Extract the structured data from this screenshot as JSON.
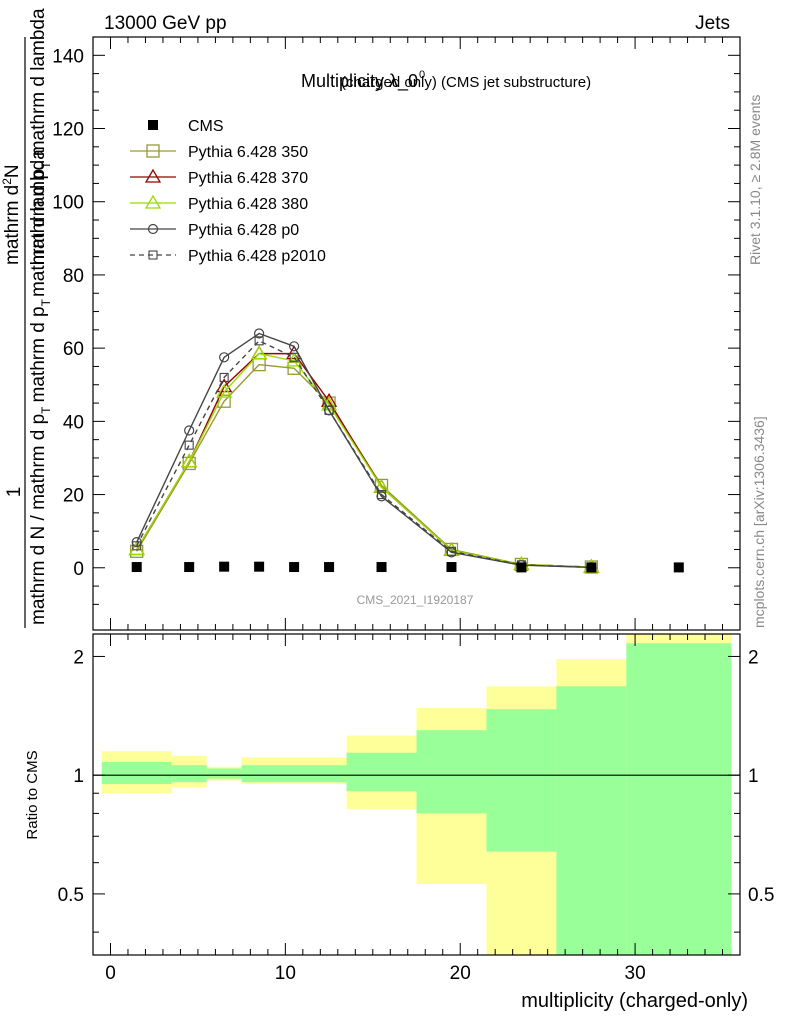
{
  "header": {
    "energy_label": "13000 GeV pp",
    "category_label": "Jets",
    "title_main": "Multiplicity λ_0",
    "title_sup": "0",
    "title_suffix": "(charged only) (CMS jet substructure)",
    "watermark": "CMS_2021_I1920187",
    "side_label_top": "Rivet 3.1.10, ≥ 2.8M events",
    "side_label_bottom": "mcplots.cern.ch [arXiv:1306.3436]"
  },
  "chart_data": [
    {
      "type": "line",
      "panel": "main",
      "title": "Multiplicity λ_0^0 (charged only) (CMS jet substructure)",
      "ylabel_numerator": "1    d²N",
      "ylabel_numerator_parts": [
        "1",
        "mathrm d",
        "N"
      ],
      "ylabel_denominator": "mathrm d N / mathrm d p_T   mathrm d p_T mathrm d lambda",
      "ylabel_parts": {
        "top_numer": "mathrm d",
        "top_N": "N",
        "top_denom": "mathrm d p",
        "top_denom_sub": "T",
        "top_denom_rest": " mathrm d lambda",
        "one": "1",
        "bottom": "mathrm d N / mathrm d p",
        "bottom_sub": "T",
        "bottom_rest": "mathrm d p",
        "bottom_sub2": "T",
        "bottom_rest2": "mathrm d lambda"
      },
      "xlim": [
        -1,
        36
      ],
      "ylim": [
        -17,
        145
      ],
      "yticks": [
        0,
        20,
        40,
        60,
        80,
        100,
        120,
        140
      ],
      "legend_position": "top-left",
      "series": [
        {
          "name": "CMS",
          "color": "#000000",
          "marker": "square-filled",
          "line": "none",
          "x": [
            1.5,
            4.5,
            6.5,
            8.5,
            10.5,
            12.5,
            15.5,
            19.5,
            23.5,
            27.5,
            32.5
          ],
          "y": [
            0.2,
            0.2,
            0.3,
            0.3,
            0.2,
            0.2,
            0.2,
            0.2,
            0.1,
            0.1,
            0.1
          ]
        },
        {
          "name": "Pythia 6.428 350",
          "color": "#999933",
          "marker": "square-open",
          "line": "solid",
          "x": [
            1.5,
            4.5,
            6.5,
            8.5,
            10.5,
            12.5,
            15.5,
            19.5,
            23.5,
            27.5
          ],
          "y": [
            4.5,
            28.5,
            45.5,
            55.5,
            54.5,
            45.0,
            22.5,
            5.0,
            0.9,
            0.2
          ]
        },
        {
          "name": "Pythia 6.428 370",
          "color": "#990000",
          "marker": "triangle-open",
          "line": "solid",
          "x": [
            1.5,
            4.5,
            6.5,
            8.5,
            10.5,
            12.5,
            15.5,
            19.5,
            23.5,
            27.5
          ],
          "y": [
            5.0,
            29.0,
            49.5,
            58.5,
            58.5,
            45.5,
            22.0,
            4.8,
            0.9,
            0.2
          ]
        },
        {
          "name": "Pythia 6.428 380",
          "color": "#99dd00",
          "marker": "triangle-open",
          "line": "solid",
          "x": [
            1.5,
            4.5,
            6.5,
            8.5,
            10.5,
            12.5,
            15.5,
            19.5,
            23.5,
            27.5
          ],
          "y": [
            5.0,
            29.0,
            48.0,
            58.5,
            56.5,
            44.5,
            22.0,
            4.8,
            0.9,
            0.2
          ]
        },
        {
          "name": "Pythia 6.428 p0",
          "color": "#444444",
          "marker": "circle-open",
          "line": "solid",
          "x": [
            1.5,
            4.5,
            6.5,
            8.5,
            10.5,
            12.5,
            15.5,
            19.5,
            23.5,
            27.5
          ],
          "y": [
            7.0,
            37.5,
            57.5,
            64.0,
            60.5,
            43.0,
            19.5,
            4.2,
            0.7,
            0.1
          ]
        },
        {
          "name": "Pythia 6.428 p2010",
          "color": "#444444",
          "marker": "square-open-small",
          "line": "dashed",
          "x": [
            1.5,
            4.5,
            6.5,
            8.5,
            10.5,
            12.5,
            15.5,
            19.5,
            23.5,
            27.5
          ],
          "y": [
            6.0,
            33.5,
            52.0,
            62.0,
            57.5,
            43.0,
            20.0,
            4.5,
            0.8,
            0.1
          ]
        }
      ]
    },
    {
      "type": "area",
      "panel": "ratio",
      "ylabel": "Ratio to CMS",
      "xlabel": "multiplicity (charged-only)",
      "xlim": [
        -1,
        36
      ],
      "xticks": [
        0,
        10,
        20,
        30
      ],
      "ylim": [
        0.35,
        2.28
      ],
      "yticks": [
        0.5,
        1,
        2
      ],
      "reference_line": 1,
      "bins": [
        {
          "x_low": -0.5,
          "x_high": 3.5,
          "yellow": [
            0.9,
            1.15
          ],
          "green": [
            0.95,
            1.08
          ]
        },
        {
          "x_low": 3.5,
          "x_high": 5.5,
          "yellow": [
            0.93,
            1.12
          ],
          "green": [
            0.96,
            1.06
          ]
        },
        {
          "x_low": 5.5,
          "x_high": 7.5,
          "yellow": [
            0.97,
            1.05
          ],
          "green": [
            0.98,
            1.04
          ]
        },
        {
          "x_low": 7.5,
          "x_high": 13.5,
          "yellow": [
            0.95,
            1.11
          ],
          "green": [
            0.96,
            1.06
          ]
        },
        {
          "x_low": 13.5,
          "x_high": 17.5,
          "yellow": [
            0.82,
            1.26
          ],
          "green": [
            0.91,
            1.14
          ]
        },
        {
          "x_low": 17.5,
          "x_high": 21.5,
          "yellow": [
            0.53,
            1.48
          ],
          "green": [
            0.8,
            1.3
          ]
        },
        {
          "x_low": 21.5,
          "x_high": 25.5,
          "yellow": [
            0.35,
            1.68
          ],
          "green": [
            0.64,
            1.47
          ]
        },
        {
          "x_low": 25.5,
          "x_high": 29.5,
          "yellow": [
            0.35,
            1.97
          ],
          "green": [
            0.35,
            1.68
          ]
        },
        {
          "x_low": 29.5,
          "x_high": 35.5,
          "yellow": [
            0.35,
            2.28
          ],
          "green": [
            0.35,
            2.16
          ]
        }
      ]
    }
  ]
}
